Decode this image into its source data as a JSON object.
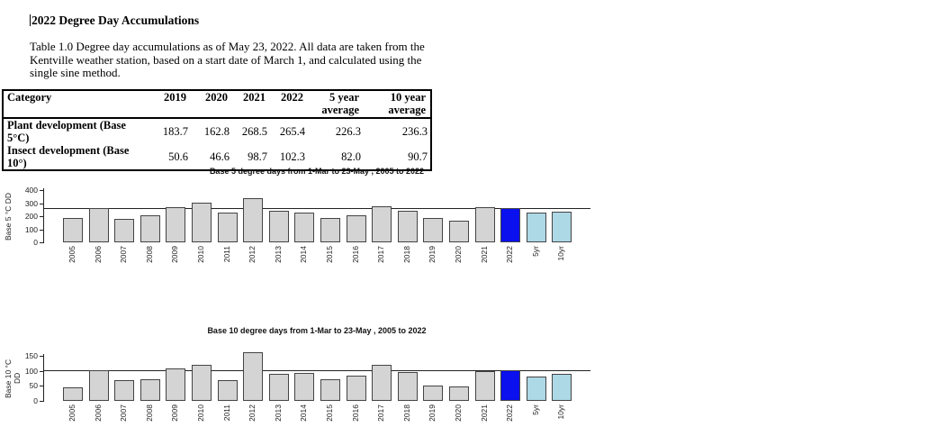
{
  "document": {
    "title": "2022 Degree Day Accumulations",
    "paragraph_lines": [
      "Table 1.0 Degree day accumulations as of May 23, 2022.  All data are taken from the",
      "Kentville weather station, based on a start date of March 1, and calculated using the",
      "single sine method."
    ]
  },
  "table": {
    "headers": [
      {
        "line1": "Category",
        "line2": ""
      },
      {
        "line1": "2019",
        "line2": ""
      },
      {
        "line1": "2020",
        "line2": ""
      },
      {
        "line1": "2021",
        "line2": ""
      },
      {
        "line1": "2022",
        "line2": ""
      },
      {
        "line1": "5 year",
        "line2": "average"
      },
      {
        "line1": "10 year",
        "line2": "average"
      }
    ],
    "rows": [
      {
        "category": "Plant development (Base 5°C)",
        "values": [
          "183.7",
          "162.8",
          "268.5",
          "265.4",
          "226.3",
          "236.3"
        ]
      },
      {
        "category": "Insect development (Base 10°)",
        "values": [
          "50.6",
          "46.6",
          "98.7",
          "102.3",
          "82.0",
          "90.7"
        ]
      }
    ]
  },
  "chart_data": [
    {
      "type": "bar",
      "title": "Base 5 degree days from 1-Mar to 23-May , 2005 to 2022",
      "ylabel": "Base 5 °C DD",
      "xlabel": "",
      "categories": [
        "2005",
        "2006",
        "2007",
        "2008",
        "2009",
        "2010",
        "2011",
        "2012",
        "2013",
        "2014",
        "2015",
        "2016",
        "2017",
        "2018",
        "2019",
        "2020",
        "2021",
        "2022",
        "5yr",
        "10yr"
      ],
      "values": [
        185,
        263,
        178,
        205,
        270,
        305,
        227,
        336,
        240,
        229,
        186,
        207,
        279,
        238,
        183.7,
        162.8,
        268.5,
        265.4,
        226.3,
        236.3
      ],
      "yticks": [
        0,
        100,
        200,
        300,
        400
      ],
      "ylim": [
        0,
        400
      ],
      "ref_line": 265.4,
      "grid": false,
      "legend": "none",
      "highlight_current": "2022",
      "highlight_averages": [
        "5yr",
        "10yr"
      ]
    },
    {
      "type": "bar",
      "title": "Base 10 degree days from 1-Mar to 23-May , 2005 to 2022",
      "ylabel": "Base 10 °C DD",
      "xlabel": "",
      "categories": [
        "2005",
        "2006",
        "2007",
        "2008",
        "2009",
        "2010",
        "2011",
        "2012",
        "2013",
        "2014",
        "2015",
        "2016",
        "2017",
        "2018",
        "2019",
        "2020",
        "2021",
        "2022",
        "5yr",
        "10yr"
      ],
      "values": [
        46,
        102,
        70,
        72,
        107,
        121,
        70,
        161,
        89,
        93,
        72,
        84,
        119,
        97,
        50.6,
        46.6,
        98.7,
        102.3,
        82.0,
        90.7
      ],
      "yticks": [
        0,
        50,
        100,
        150
      ],
      "ylim": [
        0,
        150
      ],
      "ref_line": 102.3,
      "grid": false,
      "legend": "none",
      "highlight_current": "2022",
      "highlight_averages": [
        "5yr",
        "10yr"
      ]
    }
  ],
  "colors": {
    "bar_default": "#d4d4d4",
    "bar_border": "#444444",
    "bar_current": "#0a10ee",
    "bar_average": "#add8e6",
    "ref_line": "#222222",
    "text": "#000000",
    "background": "#ffffff"
  }
}
